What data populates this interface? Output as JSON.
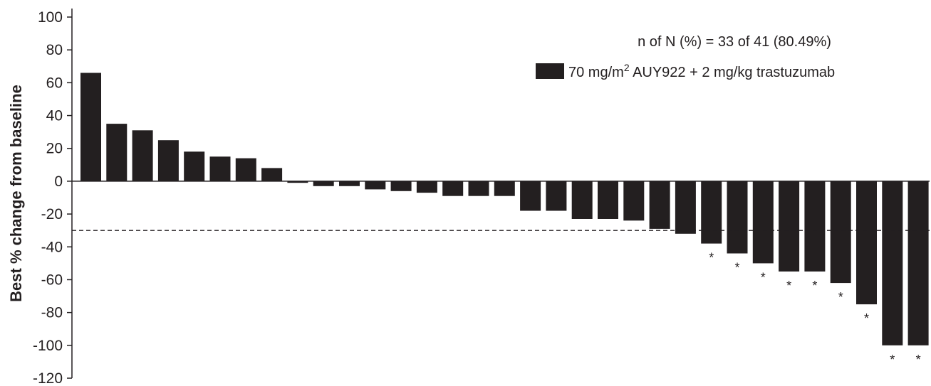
{
  "chart_data": {
    "type": "bar",
    "ylabel": "Best % change from baseline",
    "xlabel": "",
    "ylim": [
      -120,
      100
    ],
    "yticks": [
      100,
      80,
      60,
      40,
      20,
      0,
      -20,
      -40,
      -60,
      -80,
      -100,
      -120
    ],
    "threshold": -30,
    "summary": "n of N (%) = 33 of 41 (80.49%)",
    "legend": {
      "label_prefix": "70 mg/m",
      "label_sup": "2",
      "label_suffix": " AUY922 + 2 mg/kg trastuzumab",
      "color": "#231f20",
      "position": "top-right"
    },
    "series": [
      {
        "values": [
          66,
          35,
          31,
          25,
          18,
          15,
          14,
          8,
          -1,
          -3,
          -3,
          -5,
          -6,
          -7,
          -9,
          -9,
          -9,
          -18,
          -18,
          -23,
          -23,
          -24,
          -29,
          -32,
          -38,
          -44,
          -50,
          -55,
          -55,
          -62,
          -75,
          -100,
          -100
        ],
        "markers": [
          false,
          false,
          false,
          false,
          false,
          false,
          false,
          false,
          false,
          false,
          false,
          false,
          false,
          false,
          false,
          false,
          false,
          false,
          false,
          false,
          false,
          false,
          false,
          false,
          true,
          true,
          true,
          true,
          true,
          true,
          true,
          true,
          true
        ],
        "color": "#231f20"
      }
    ],
    "marker_symbol": "*"
  }
}
